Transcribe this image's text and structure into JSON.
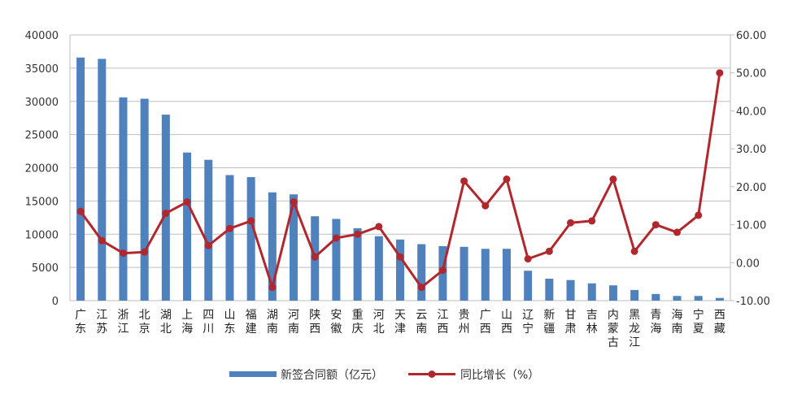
{
  "chart_data": {
    "type": "bar",
    "categories": [
      "广东",
      "江苏",
      "浙江",
      "北京",
      "湖北",
      "上海",
      "四川",
      "山东",
      "福建",
      "湖南",
      "河南",
      "陕西",
      "安徽",
      "重庆",
      "河北",
      "天津",
      "云南",
      "江西",
      "贵州",
      "广西",
      "山西",
      "辽宁",
      "新疆",
      "甘肃",
      "吉林",
      "内蒙古",
      "黑龙江",
      "青海",
      "海南",
      "宁夏",
      "西藏"
    ],
    "series": [
      {
        "name": "新签合同额（亿元）",
        "axis": "left",
        "kind": "bar",
        "color": "#4F81BD",
        "values": [
          36600,
          36400,
          30600,
          30400,
          28000,
          22300,
          21200,
          18900,
          18600,
          16300,
          16000,
          12700,
          12300,
          10900,
          9700,
          9200,
          8500,
          8200,
          8100,
          7800,
          7800,
          4500,
          3300,
          3100,
          2600,
          2300,
          1600,
          1000,
          700,
          700,
          400
        ]
      },
      {
        "name": "同比增长（%）",
        "axis": "right",
        "kind": "line",
        "color": "#B0282E",
        "values": [
          13.5,
          5.8,
          2.5,
          2.8,
          13.0,
          16.0,
          4.5,
          9.0,
          11.0,
          -6.5,
          16.0,
          1.5,
          6.5,
          7.5,
          9.5,
          1.5,
          -6.5,
          -2.0,
          21.5,
          15.0,
          22.0,
          1.0,
          3.0,
          10.5,
          11.0,
          22.0,
          3.0,
          10.0,
          8.0,
          12.5,
          50.0
        ]
      }
    ],
    "y_left": {
      "min": 0,
      "max": 40000,
      "step": 5000,
      "ticks": [
        "0",
        "5000",
        "10000",
        "15000",
        "20000",
        "25000",
        "30000",
        "35000",
        "40000"
      ]
    },
    "y_right": {
      "min": -10,
      "max": 60,
      "step": 10,
      "ticks": [
        "-10.00",
        "0.00",
        "10.00",
        "20.00",
        "30.00",
        "40.00",
        "50.00",
        "60.00"
      ]
    },
    "grid": true,
    "legend_position": "bottom",
    "title": "",
    "xlabel": "",
    "ylabel": ""
  },
  "legend": [
    {
      "label": "新签合同额（亿元）",
      "marker": "bar",
      "color": "#4F81BD"
    },
    {
      "label": "同比增长（%）",
      "marker": "line",
      "color": "#B0282E"
    }
  ]
}
